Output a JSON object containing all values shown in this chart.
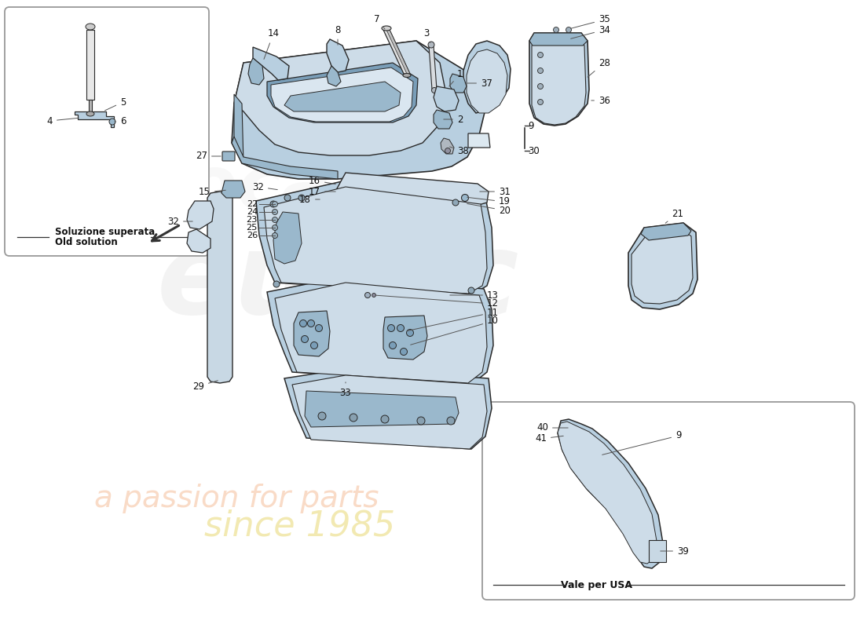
{
  "bg_color": "#ffffff",
  "part_color_light": "#b8cfe0",
  "part_color_mid": "#9ab8cc",
  "part_color_dark": "#7a9eb8",
  "part_color_face": "#cddce8",
  "line_color": "#2a2a2a",
  "box1_label1": "Soluzione superata",
  "box1_label2": "Old solution",
  "box2_label": "Vale per USA",
  "wm_gray": "#d0d0d0",
  "wm_orange": "#e87020",
  "wm_yellow": "#d4b800"
}
